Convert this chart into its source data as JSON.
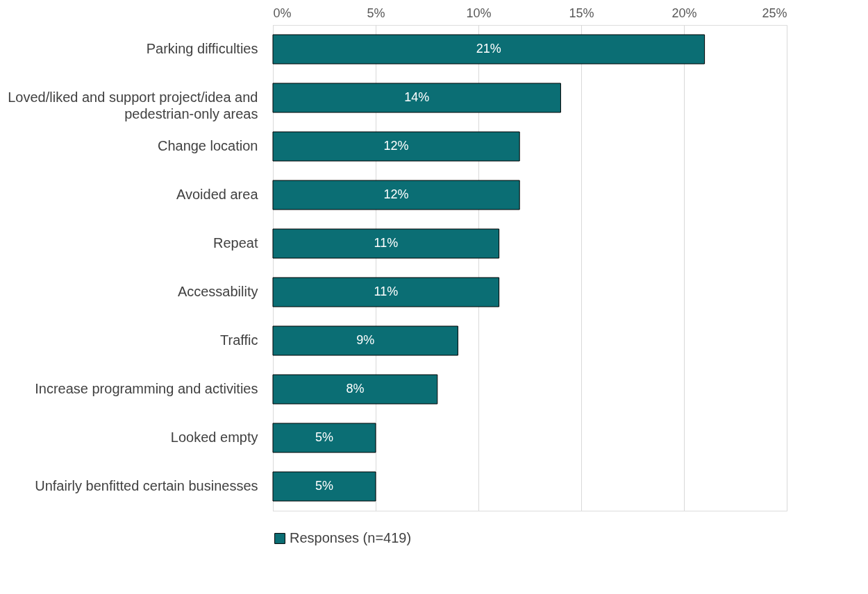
{
  "chart_data": {
    "type": "bar",
    "orientation": "horizontal",
    "categories": [
      "Parking difficulties",
      "Loved/liked and support project/idea and pedestrian-only areas",
      "Change location",
      "Avoided area",
      "Repeat",
      "Accessability ",
      "Traffic",
      "Increase programming and activities",
      "Looked empty",
      "Unfairly benfitted certain businesses"
    ],
    "series": [
      {
        "name": "Responses (n=419)",
        "color": "#0b6e74",
        "values": [
          21,
          14,
          12,
          12,
          11,
          11,
          9,
          8,
          5,
          5
        ],
        "value_labels": [
          "21%",
          "14%",
          "12%",
          "12%",
          "11%",
          "11%",
          "9%",
          "8%",
          "5%",
          "5%"
        ]
      }
    ],
    "xlim": [
      0,
      25
    ],
    "xticks": [
      {
        "value": 0,
        "label": "0%"
      },
      {
        "value": 5,
        "label": "5%"
      },
      {
        "value": 10,
        "label": "10%"
      },
      {
        "value": 15,
        "label": "15%"
      },
      {
        "value": 20,
        "label": "20%"
      },
      {
        "value": 25,
        "label": "25%"
      }
    ],
    "grid": "x",
    "legend": "bottom"
  }
}
